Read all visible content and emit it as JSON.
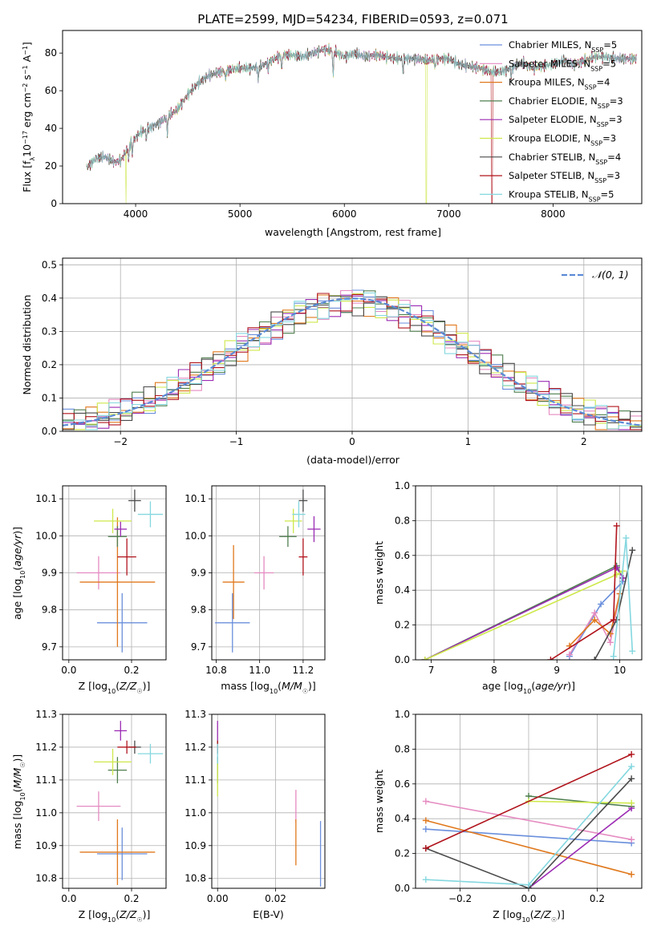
{
  "title": "PLATE=2599, MJD=54234, FIBERID=0593, z=0.071",
  "colors": {
    "Chabrier MILES": "#6a8fdc",
    "Salpeter MILES": "#e58bc1",
    "Kroupa MILES": "#e0781c",
    "Chabrier ELODIE": "#4f7f4f",
    "Salpeter ELODIE": "#9b2bb3",
    "Kroupa ELODIE": "#cde84a",
    "Chabrier STELIB": "#4a4a4a",
    "Salpeter STELIB": "#b0141c",
    "Kroupa STELIB": "#84d7df",
    "gaussian": "#5b8ad6",
    "grid": "#b0b0b0"
  },
  "chart_data": [
    {
      "type": "line",
      "id": "spectrum",
      "xlabel": "wavelength [Angstrom, rest frame]",
      "ylabel": "Flux [f_λ 10^-17 erg cm^-2 s^-1 A^-1]",
      "xlim": [
        3300,
        8850
      ],
      "ylim": [
        0,
        92
      ],
      "xticks": [
        4000,
        5000,
        6000,
        7000,
        8000
      ],
      "yticks": [
        0,
        20,
        40,
        60,
        80
      ],
      "legend_position": "top-right",
      "series": [
        {
          "name": "Chabrier MILES",
          "nssp": "5"
        },
        {
          "name": "Salpeter MILES",
          "nssp": "5"
        },
        {
          "name": "Kroupa MILES",
          "nssp": "4"
        },
        {
          "name": "Chabrier ELODIE",
          "nssp": "3"
        },
        {
          "name": "Salpeter ELODIE",
          "nssp": "3"
        },
        {
          "name": "Kroupa ELODIE",
          "nssp": "3"
        },
        {
          "name": "Chabrier STELIB",
          "nssp": "4"
        },
        {
          "name": "Salpeter STELIB",
          "nssp": "3"
        },
        {
          "name": "Kroupa STELIB",
          "nssp": "5"
        }
      ],
      "continuum": [
        [
          3530,
          19
        ],
        [
          3620,
          24
        ],
        [
          3700,
          25
        ],
        [
          3800,
          22
        ],
        [
          3860,
          23
        ],
        [
          3950,
          32
        ],
        [
          4050,
          38
        ],
        [
          4200,
          42
        ],
        [
          4300,
          46
        ],
        [
          4400,
          50
        ],
        [
          4500,
          58
        ],
        [
          4600,
          64
        ],
        [
          4700,
          68
        ],
        [
          4800,
          70
        ],
        [
          4900,
          71
        ],
        [
          5000,
          72
        ],
        [
          5100,
          72
        ],
        [
          5200,
          73
        ],
        [
          5300,
          76
        ],
        [
          5400,
          79
        ],
        [
          5500,
          79
        ],
        [
          5600,
          78
        ],
        [
          5700,
          80
        ],
        [
          5800,
          82
        ],
        [
          5900,
          81
        ],
        [
          6000,
          78
        ],
        [
          6100,
          80
        ],
        [
          6200,
          78
        ],
        [
          6300,
          79
        ],
        [
          6400,
          78
        ],
        [
          6500,
          77
        ],
        [
          6600,
          77
        ],
        [
          6700,
          77
        ],
        [
          6800,
          76
        ],
        [
          6900,
          77
        ],
        [
          7000,
          77
        ],
        [
          7100,
          74
        ],
        [
          7200,
          73
        ],
        [
          7300,
          72
        ],
        [
          7400,
          70
        ],
        [
          7500,
          70
        ],
        [
          7600,
          72
        ],
        [
          7700,
          75
        ],
        [
          7800,
          72
        ],
        [
          7900,
          73
        ],
        [
          8000,
          74
        ],
        [
          8100,
          76
        ],
        [
          8200,
          74
        ],
        [
          8300,
          76
        ],
        [
          8400,
          78
        ],
        [
          8500,
          78
        ],
        [
          8600,
          77
        ],
        [
          8700,
          77
        ],
        [
          8800,
          77
        ]
      ],
      "absorption_lines": [
        [
          3934,
          8
        ],
        [
          3969,
          7
        ],
        [
          4102,
          6
        ],
        [
          4304,
          9
        ],
        [
          4861,
          5
        ],
        [
          5175,
          8
        ],
        [
          5270,
          4
        ],
        [
          5400,
          9
        ],
        [
          5893,
          14
        ],
        [
          6563,
          8
        ],
        [
          6870,
          5
        ],
        [
          7600,
          5
        ]
      ],
      "drops_to_zero": [
        {
          "series": "Kroupa ELODIE",
          "x": 3910
        },
        {
          "series": "Kroupa ELODIE",
          "x": 6785
        },
        {
          "series": "Salpeter STELIB",
          "x": 7415
        }
      ]
    },
    {
      "type": "line",
      "id": "residual-histogram",
      "xlabel": "(data-model)/error",
      "ylabel": "Normed distribution",
      "xlim": [
        -2.5,
        2.5
      ],
      "ylim": [
        0,
        0.52
      ],
      "xticks": [
        -2,
        -1,
        0,
        1,
        2
      ],
      "yticks": [
        0.0,
        0.1,
        0.2,
        0.3,
        0.4,
        0.5
      ],
      "grid": true,
      "legend": [
        {
          "name": "N(0,1)",
          "style": "dashed"
        }
      ],
      "legend_position": "top-right",
      "bin_width": 0.1,
      "histogram_sigma": 1.02
    },
    {
      "type": "scatter",
      "id": "age-vs-Z",
      "xlabel": "Z [log10(Z/Z☉)]",
      "ylabel": "age [log10(age/yr)]",
      "xlim": [
        -0.02,
        0.31
      ],
      "ylim": [
        9.665,
        10.135
      ],
      "xticks": [
        0.0,
        0.2
      ],
      "yticks": [
        9.7,
        9.8,
        9.9,
        10.0,
        10.1
      ],
      "grid": true,
      "points": [
        {
          "series": "Chabrier MILES",
          "x": 0.17,
          "y": 9.765,
          "xerr": 0.08,
          "yerr": 0.08
        },
        {
          "series": "Salpeter MILES",
          "x": 0.095,
          "y": 9.9,
          "xerr": 0.07,
          "yerr": 0.045
        },
        {
          "series": "Kroupa MILES",
          "x": 0.155,
          "y": 9.875,
          "xerr": 0.12,
          "yerr": 0.175
        },
        {
          "series": "Chabrier ELODIE",
          "x": 0.155,
          "y": 9.998,
          "xerr": 0.03,
          "yerr": 0.028
        },
        {
          "series": "Salpeter ELODIE",
          "x": 0.165,
          "y": 10.018,
          "xerr": 0.02,
          "yerr": 0.02
        },
        {
          "series": "Kroupa ELODIE",
          "x": 0.14,
          "y": 10.04,
          "xerr": 0.06,
          "yerr": 0.033
        },
        {
          "series": "Chabrier STELIB",
          "x": 0.21,
          "y": 10.095,
          "xerr": 0.02,
          "yerr": 0.03
        },
        {
          "series": "Salpeter STELIB",
          "x": 0.185,
          "y": 9.943,
          "xerr": 0.03,
          "yerr": 0.05
        },
        {
          "series": "Kroupa STELIB",
          "x": 0.26,
          "y": 10.058,
          "xerr": 0.04,
          "yerr": 0.035
        }
      ]
    },
    {
      "type": "scatter",
      "id": "age-vs-mass",
      "xlabel": "mass [log10(M/M☉)]",
      "ylabel": "",
      "xlim": [
        10.78,
        11.3
      ],
      "ylim": [
        9.665,
        10.135
      ],
      "xticks": [
        10.8,
        11.0,
        11.2
      ],
      "yticks": [
        9.7,
        9.8,
        9.9,
        10.0,
        10.1
      ],
      "grid": true,
      "points": [
        {
          "series": "Chabrier MILES",
          "x": 10.875,
          "y": 9.765,
          "xerr": 0.08,
          "yerr": 0.08
        },
        {
          "series": "Salpeter MILES",
          "x": 11.02,
          "y": 9.9,
          "xerr": 0.045,
          "yerr": 0.045
        },
        {
          "series": "Kroupa MILES",
          "x": 10.88,
          "y": 9.875,
          "xerr": 0.05,
          "yerr": 0.1
        },
        {
          "series": "Chabrier ELODIE",
          "x": 11.13,
          "y": 9.998,
          "xerr": 0.04,
          "yerr": 0.028
        },
        {
          "series": "Salpeter ELODIE",
          "x": 11.25,
          "y": 10.018,
          "xerr": 0.03,
          "yerr": 0.035
        },
        {
          "series": "Kroupa ELODIE",
          "x": 11.155,
          "y": 10.04,
          "xerr": 0.04,
          "yerr": 0.033
        },
        {
          "series": "Chabrier STELIB",
          "x": 11.2,
          "y": 10.095,
          "xerr": 0.02,
          "yerr": 0.03
        },
        {
          "series": "Salpeter STELIB",
          "x": 11.2,
          "y": 9.943,
          "xerr": 0.02,
          "yerr": 0.05
        },
        {
          "series": "Kroupa STELIB",
          "x": 11.18,
          "y": 10.058,
          "xerr": 0.03,
          "yerr": 0.035
        }
      ]
    },
    {
      "type": "line",
      "id": "mass-weight-vs-age",
      "xlabel": "age [log10(age/yr)]",
      "ylabel": "mass weight",
      "xlim": [
        6.75,
        10.35
      ],
      "ylim": [
        0,
        1.0
      ],
      "xticks": [
        7,
        8,
        9,
        10
      ],
      "yticks": [
        0.0,
        0.2,
        0.4,
        0.6,
        0.8,
        1.0
      ],
      "grid": true,
      "series": [
        {
          "name": "Chabrier MILES",
          "x": [
            9.2,
            9.7,
            10.05
          ],
          "y": [
            0.02,
            0.32,
            0.45
          ]
        },
        {
          "name": "Salpeter MILES",
          "x": [
            9.2,
            9.6,
            9.85,
            10.0
          ],
          "y": [
            0.03,
            0.27,
            0.1,
            0.38
          ]
        },
        {
          "name": "Kroupa MILES",
          "x": [
            9.2,
            9.6,
            9.85,
            10.0
          ],
          "y": [
            0.08,
            0.23,
            0.15,
            0.38
          ]
        },
        {
          "name": "Chabrier ELODIE",
          "x": [
            6.9,
            9.95,
            10.05
          ],
          "y": [
            0.0,
            0.54,
            0.47
          ]
        },
        {
          "name": "Salpeter ELODIE",
          "x": [
            6.9,
            9.95,
            10.05
          ],
          "y": [
            0.0,
            0.53,
            0.47
          ]
        },
        {
          "name": "Kroupa ELODIE",
          "x": [
            6.9,
            9.95,
            10.05
          ],
          "y": [
            0.0,
            0.49,
            0.51
          ]
        },
        {
          "name": "Chabrier STELIB",
          "x": [
            9.6,
            9.95,
            10.2
          ],
          "y": [
            0.0,
            0.23,
            0.63
          ]
        },
        {
          "name": "Salpeter STELIB",
          "x": [
            8.9,
            9.9,
            9.95
          ],
          "y": [
            0.0,
            0.23,
            0.77
          ]
        },
        {
          "name": "Kroupa STELIB",
          "x": [
            9.9,
            10.1,
            10.2
          ],
          "y": [
            0.02,
            0.7,
            0.05
          ]
        }
      ]
    },
    {
      "type": "scatter",
      "id": "mass-vs-Z",
      "xlabel": "Z [log10(Z/Z☉)]",
      "ylabel": "mass [log10(M/M☉)]",
      "xlim": [
        -0.02,
        0.31
      ],
      "ylim": [
        10.77,
        11.3
      ],
      "xticks": [
        0.0,
        0.2
      ],
      "yticks": [
        10.8,
        10.9,
        11.0,
        11.1,
        11.2,
        11.3
      ],
      "grid": true,
      "points": [
        {
          "series": "Chabrier MILES",
          "x": 0.17,
          "y": 10.875,
          "xerr": 0.08,
          "yerr": 0.08
        },
        {
          "series": "Salpeter MILES",
          "x": 0.095,
          "y": 11.02,
          "xerr": 0.07,
          "yerr": 0.045
        },
        {
          "series": "Kroupa MILES",
          "x": 0.155,
          "y": 10.88,
          "xerr": 0.12,
          "yerr": 0.1
        },
        {
          "series": "Chabrier ELODIE",
          "x": 0.155,
          "y": 11.13,
          "xerr": 0.03,
          "yerr": 0.04
        },
        {
          "series": "Salpeter ELODIE",
          "x": 0.165,
          "y": 11.25,
          "xerr": 0.02,
          "yerr": 0.03
        },
        {
          "series": "Kroupa ELODIE",
          "x": 0.14,
          "y": 11.155,
          "xerr": 0.06,
          "yerr": 0.04
        },
        {
          "series": "Chabrier STELIB",
          "x": 0.21,
          "y": 11.2,
          "xerr": 0.02,
          "yerr": 0.02
        },
        {
          "series": "Salpeter STELIB",
          "x": 0.185,
          "y": 11.2,
          "xerr": 0.03,
          "yerr": 0.02
        },
        {
          "series": "Kroupa STELIB",
          "x": 0.26,
          "y": 11.18,
          "xerr": 0.04,
          "yerr": 0.03
        }
      ]
    },
    {
      "type": "scatter",
      "id": "mass-vs-ebv",
      "xlabel": "E(B-V)",
      "ylabel": "",
      "xlim": [
        -0.002,
        0.037
      ],
      "ylim": [
        10.77,
        11.3
      ],
      "xticks": [
        0.0,
        0.02
      ],
      "yticks": [
        10.8,
        10.9,
        11.0,
        11.1,
        11.2,
        11.3
      ],
      "grid": true,
      "points": [
        {
          "series": "Chabrier MILES",
          "x": 0.0355,
          "y": 10.875,
          "xerr": 0.0,
          "yerr": 0.1
        },
        {
          "series": "Salpeter MILES",
          "x": 0.027,
          "y": 11.02,
          "xerr": 0.0,
          "yerr": 0.05
        },
        {
          "series": "Kroupa MILES",
          "x": 0.027,
          "y": 10.91,
          "xerr": 0.0,
          "yerr": 0.07
        },
        {
          "series": "Chabrier ELODIE",
          "x": 0.0,
          "y": 11.13,
          "xerr": 0.0,
          "yerr": 0.04
        },
        {
          "series": "Salpeter ELODIE",
          "x": 0.0,
          "y": 11.25,
          "xerr": 0.0,
          "yerr": 0.03
        },
        {
          "series": "Kroupa ELODIE",
          "x": 0.0,
          "y": 11.1,
          "xerr": 0.0,
          "yerr": 0.05
        },
        {
          "series": "Chabrier STELIB",
          "x": 0.0,
          "y": 11.2,
          "xerr": 0.0,
          "yerr": 0.02
        },
        {
          "series": "Salpeter STELIB",
          "x": 0.0,
          "y": 11.2,
          "xerr": 0.0,
          "yerr": 0.02
        },
        {
          "series": "Kroupa STELIB",
          "x": 0.0,
          "y": 11.18,
          "xerr": 0.0,
          "yerr": 0.03
        }
      ]
    },
    {
      "type": "line",
      "id": "mass-weight-vs-Z",
      "xlabel": "Z [log10(Z/Z☉)]",
      "ylabel": "mass weight",
      "xlim": [
        -0.33,
        0.33
      ],
      "ylim": [
        0,
        1.0
      ],
      "xticks": [
        -0.2,
        0.0,
        0.2
      ],
      "yticks": [
        0.0,
        0.2,
        0.4,
        0.6,
        0.8,
        1.0
      ],
      "grid": true,
      "series": [
        {
          "name": "Chabrier MILES",
          "x": [
            -0.3,
            0.3
          ],
          "y": [
            0.34,
            0.26
          ]
        },
        {
          "name": "Salpeter MILES",
          "x": [
            -0.3,
            0.3
          ],
          "y": [
            0.5,
            0.28
          ]
        },
        {
          "name": "Kroupa MILES",
          "x": [
            -0.3,
            0.3
          ],
          "y": [
            0.39,
            0.08
          ]
        },
        {
          "name": "Chabrier ELODIE",
          "x": [
            0.0,
            0.3
          ],
          "y": [
            0.53,
            0.47
          ]
        },
        {
          "name": "Salpeter ELODIE",
          "x": [
            0.0,
            0.3
          ],
          "y": [
            0.0,
            0.46
          ]
        },
        {
          "name": "Kroupa ELODIE",
          "x": [
            0.0,
            0.3
          ],
          "y": [
            0.5,
            0.49
          ]
        },
        {
          "name": "Chabrier STELIB",
          "x": [
            -0.3,
            0.0,
            0.3
          ],
          "y": [
            0.23,
            0.0,
            0.63
          ]
        },
        {
          "name": "Salpeter STELIB",
          "x": [
            -0.3,
            0.3
          ],
          "y": [
            0.23,
            0.77
          ]
        },
        {
          "name": "Kroupa STELIB",
          "x": [
            -0.3,
            0.0,
            0.3
          ],
          "y": [
            0.05,
            0.02,
            0.7
          ]
        }
      ]
    }
  ]
}
